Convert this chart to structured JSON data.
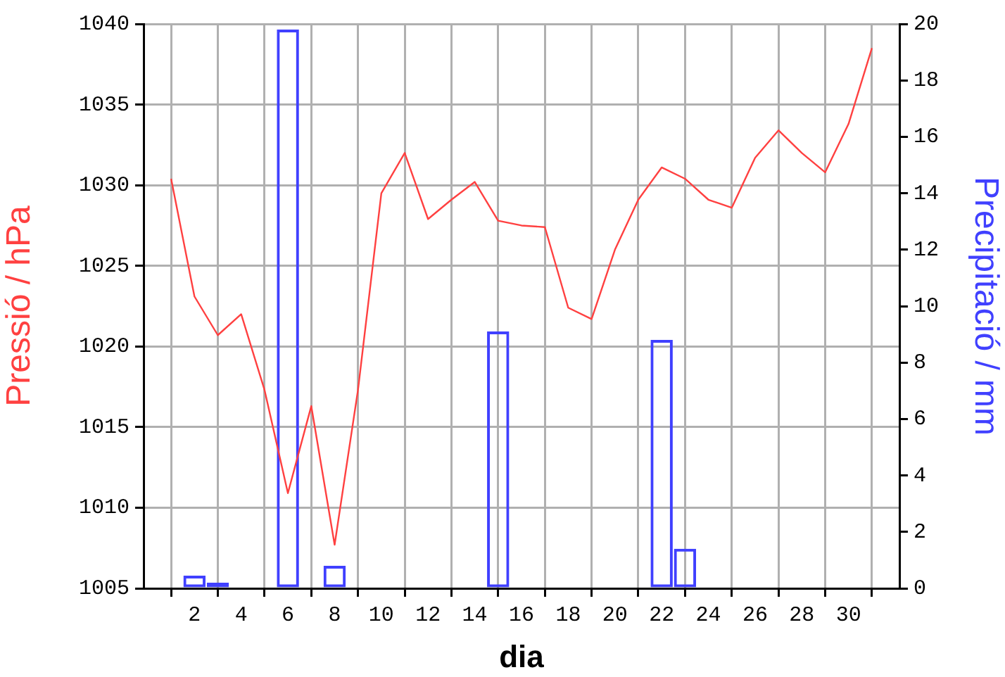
{
  "chart_data": {
    "type": "line",
    "xlabel": "dia",
    "ylabel": "Pressió / hPa",
    "y2label": "Precipitació / mm",
    "x": [
      1,
      2,
      3,
      4,
      5,
      6,
      7,
      8,
      9,
      10,
      11,
      12,
      13,
      14,
      15,
      16,
      17,
      18,
      19,
      20,
      21,
      22,
      23,
      24,
      25,
      26,
      27,
      28,
      29,
      30,
      31
    ],
    "series": [
      {
        "type": "bar",
        "axis": "y2",
        "color": "#4040ff",
        "values": [
          0,
          0.45,
          0.2,
          0,
          0,
          19.8,
          0,
          0.8,
          0,
          0,
          0,
          0,
          0,
          0,
          9.1,
          0,
          0,
          0,
          0,
          0,
          0,
          8.8,
          1.4,
          0,
          0,
          0,
          0,
          0,
          0,
          0,
          0
        ]
      },
      {
        "type": "line",
        "color": "#ff4040",
        "values": [
          1030.4,
          1023.1,
          1020.7,
          1022.0,
          1017.3,
          1010.9,
          1016.3,
          1007.7,
          1017.3,
          1029.5,
          1032.0,
          1027.9,
          1029.1,
          1030.2,
          1027.8,
          1027.5,
          1027.4,
          1022.4,
          1021.7,
          1026.0,
          1029.1,
          1031.1,
          1030.4,
          1029.1,
          1028.6,
          1031.7,
          1033.4,
          1032.0,
          1030.8,
          1033.8,
          1038.5
        ]
      }
    ],
    "xlim": [
      0.9,
      31.1
    ],
    "xticks": [
      2,
      4,
      6,
      8,
      10,
      12,
      14,
      16,
      18,
      20,
      22,
      24,
      26,
      28,
      30
    ],
    "ylim": [
      1005,
      1040
    ],
    "yticks": [
      1005,
      1010,
      1015,
      1020,
      1025,
      1030,
      1035,
      1040
    ],
    "y2lim": [
      0,
      20
    ],
    "y2ticks": [
      0,
      2,
      4,
      6,
      8,
      10,
      12,
      14,
      16,
      18,
      20
    ],
    "grid": true,
    "legend": false,
    "marker": "none",
    "line_style": "solid"
  }
}
